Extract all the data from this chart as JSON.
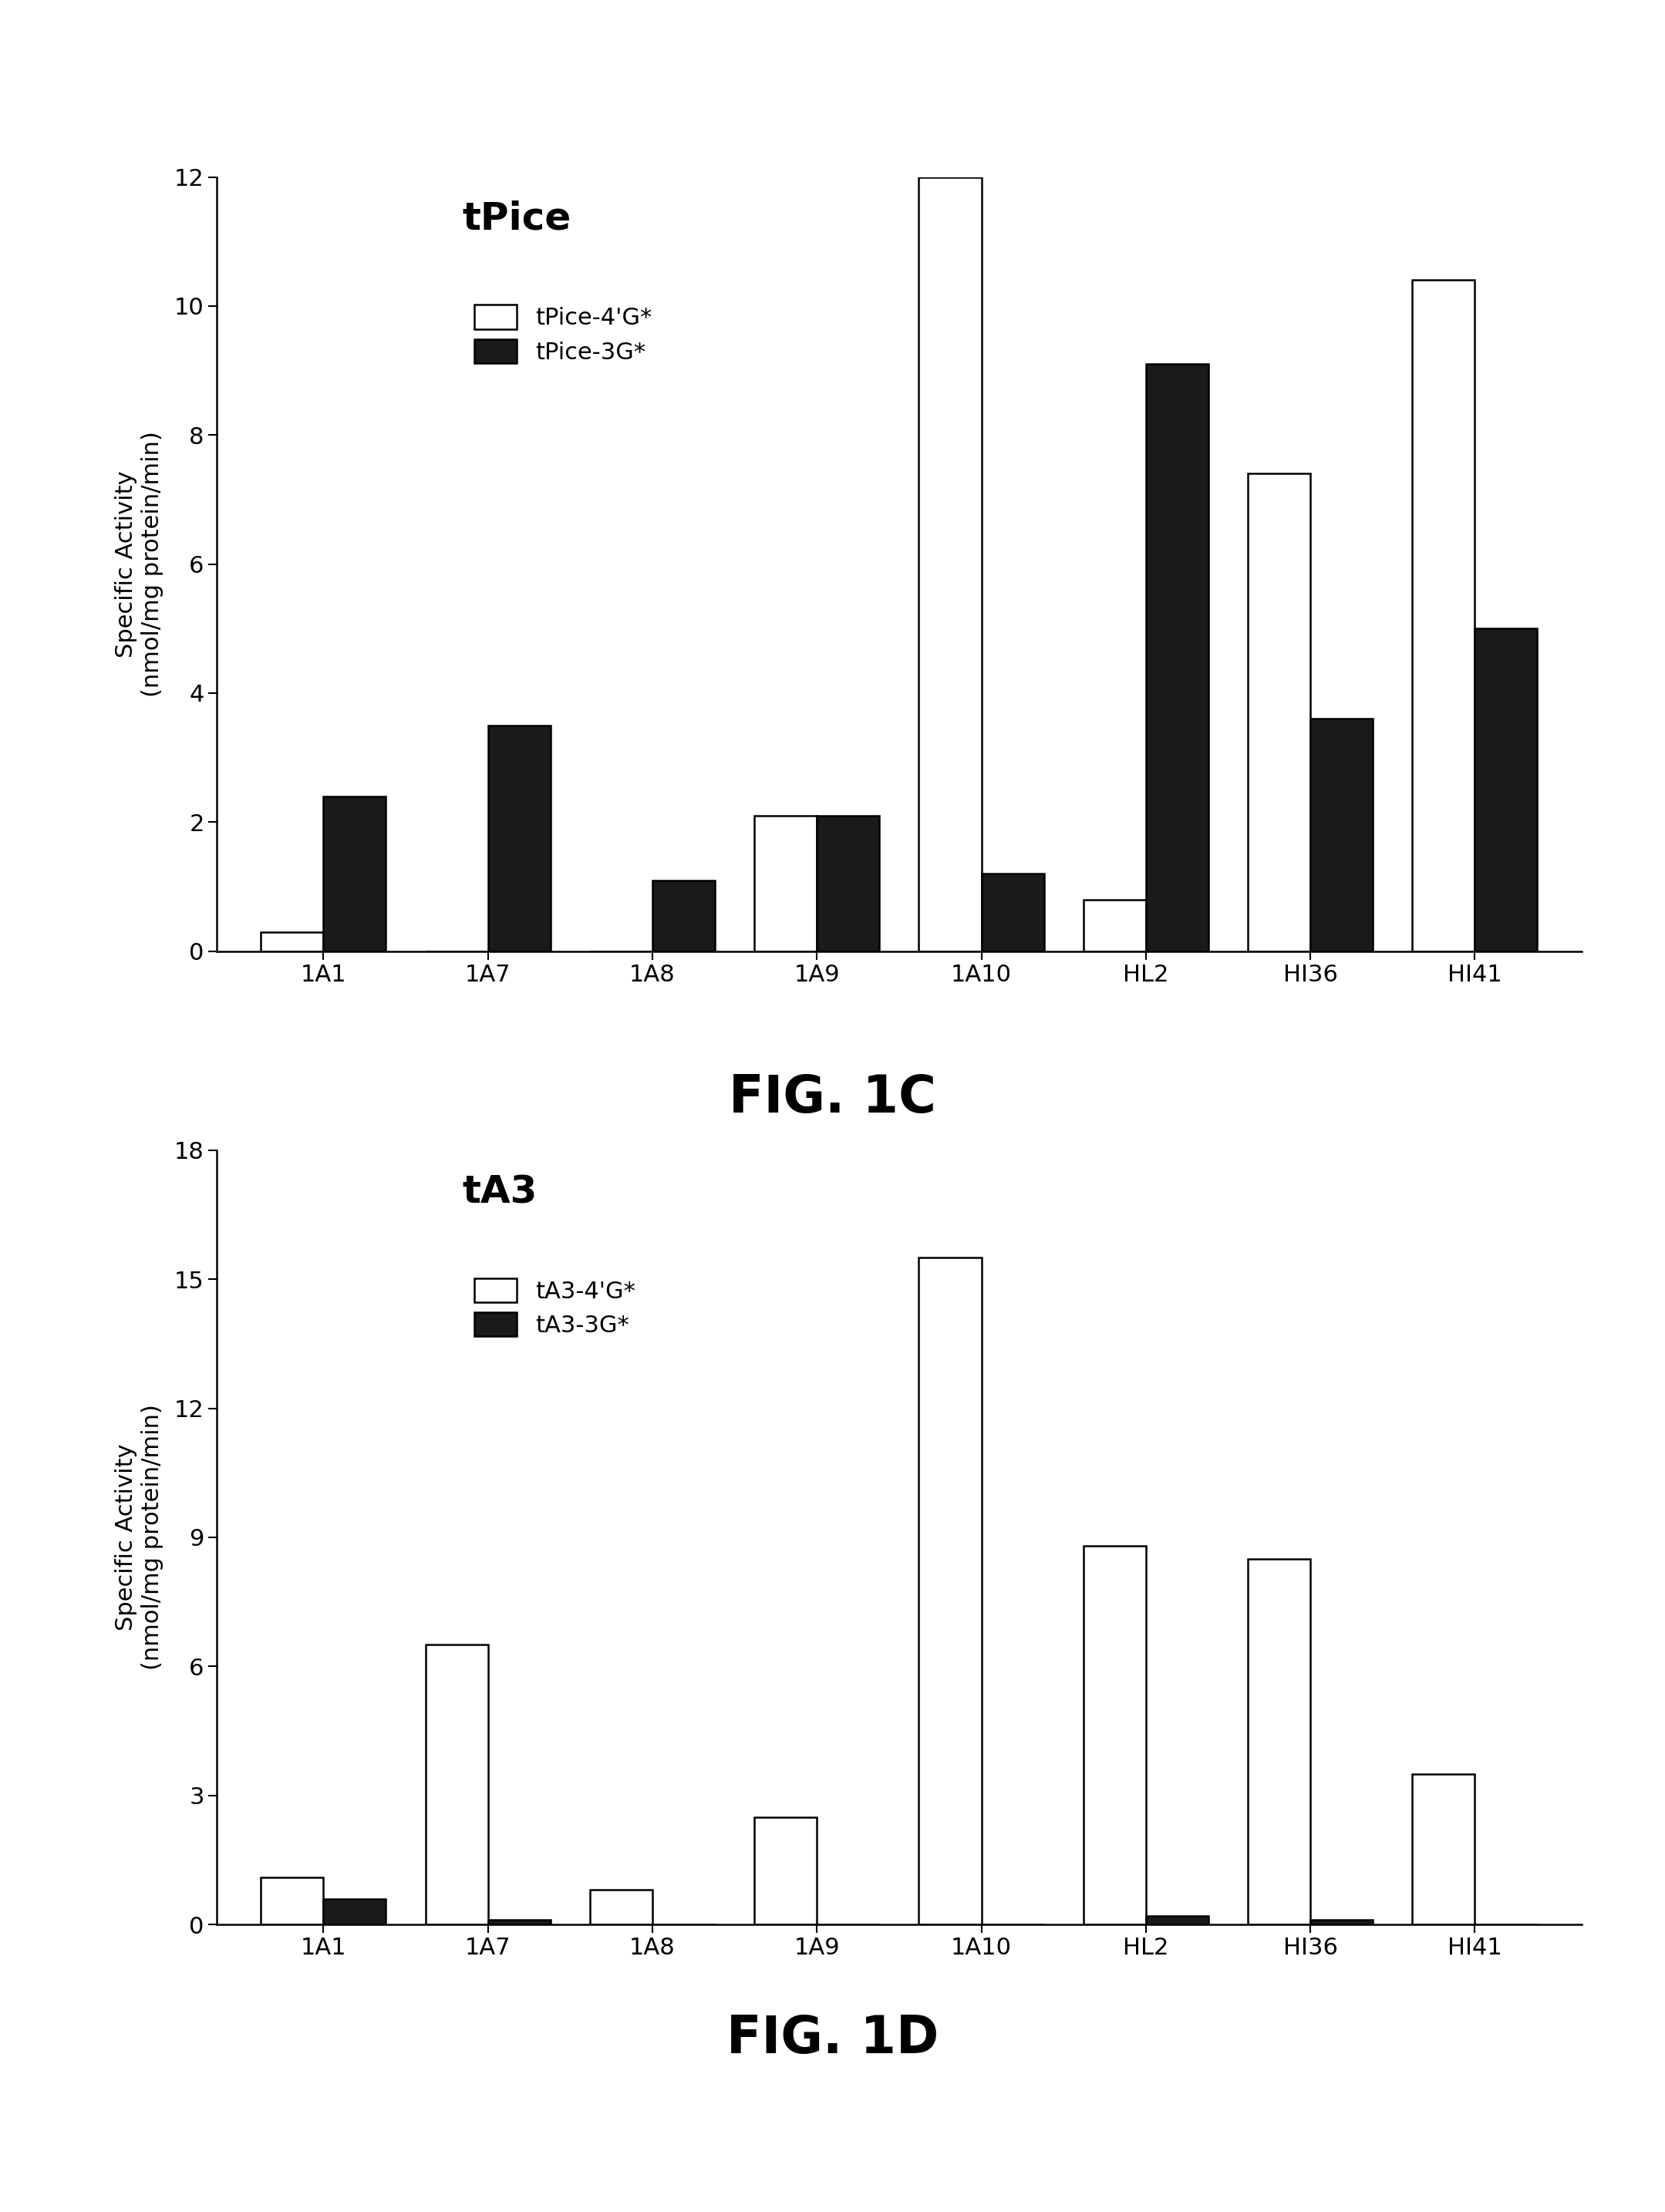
{
  "fig1c": {
    "title": "tPice",
    "categories": [
      "1A1",
      "1A7",
      "1A8",
      "1A9",
      "1A10",
      "HL2",
      "HI36",
      "HI41"
    ],
    "series1_label": "tPice-4'G*",
    "series2_label": "tPice-3G*",
    "series1_values": [
      0.3,
      0.0,
      0.0,
      2.1,
      12.0,
      0.8,
      7.4,
      10.4
    ],
    "series2_values": [
      2.4,
      3.5,
      1.1,
      2.1,
      1.2,
      9.1,
      3.6,
      5.0
    ],
    "ylim": [
      0,
      12
    ],
    "yticks": [
      0,
      2,
      4,
      6,
      8,
      10,
      12
    ],
    "ylabel_line1": "Specific Activity",
    "ylabel_line2": "(nmol/mg protein/min)",
    "fig_label": "FIG. 1C"
  },
  "fig1d": {
    "title": "tA3",
    "categories": [
      "1A1",
      "1A7",
      "1A8",
      "1A9",
      "1A10",
      "HL2",
      "HI36",
      "HI41"
    ],
    "series1_label": "tA3-4'G*",
    "series2_label": "tA3-3G*",
    "series1_values": [
      1.1,
      6.5,
      0.8,
      2.5,
      15.5,
      8.8,
      8.5,
      3.5
    ],
    "series2_values": [
      0.6,
      0.1,
      0.0,
      0.0,
      0.0,
      0.2,
      0.1,
      0.0
    ],
    "ylim": [
      0,
      18
    ],
    "yticks": [
      0,
      3,
      6,
      9,
      12,
      15,
      18
    ],
    "ylabel_line1": "Specific Activity",
    "ylabel_line2": "(nmol/mg protein/min)",
    "fig_label": "FIG. 1D"
  },
  "bar_width": 0.38,
  "color_open": "#ffffff",
  "color_filled": "#1a1a1a",
  "edge_color": "#000000",
  "background_color": "#ffffff",
  "title_fontsize": 36,
  "label_fontsize": 22,
  "tick_fontsize": 22,
  "legend_fontsize": 22,
  "fig_label_fontsize": 48
}
